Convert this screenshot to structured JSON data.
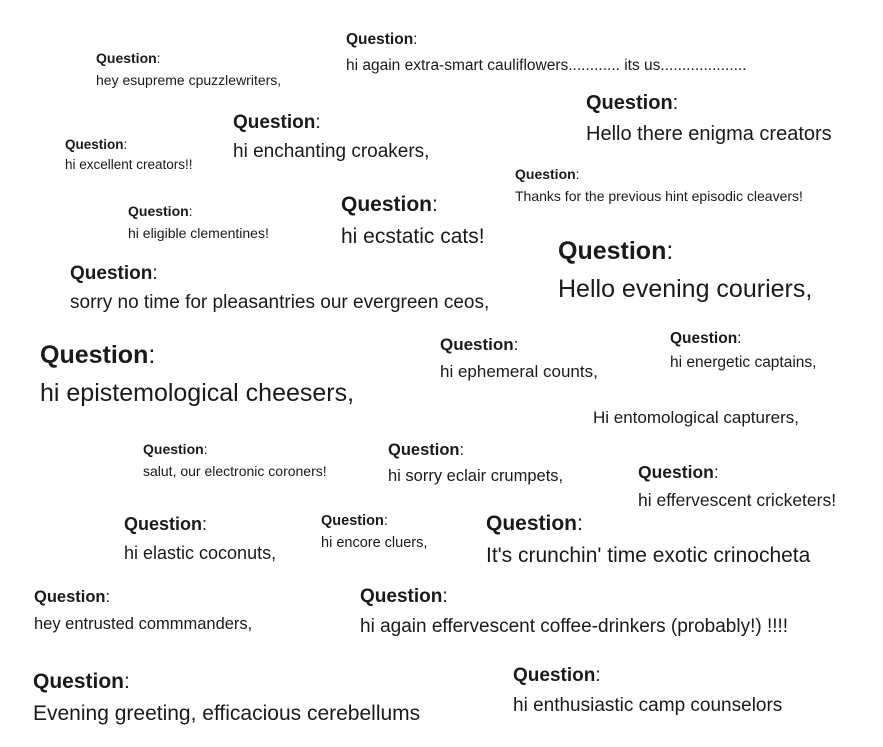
{
  "heading_word": "Question",
  "colon": ":",
  "snippets": [
    {
      "id": "s1",
      "text": "hey esupreme cpuzzlewriters,"
    },
    {
      "id": "s2",
      "text": "hi again extra-smart cauliflowers............ its us...................."
    },
    {
      "id": "s3",
      "text": "Hello there enigma creators"
    },
    {
      "id": "s4",
      "text": "hi enchanting croakers,"
    },
    {
      "id": "s5",
      "text": "hi excellent creators!!"
    },
    {
      "id": "s6",
      "text": "Thanks for the previous hint episodic cleavers!"
    },
    {
      "id": "s7",
      "text": "hi eligible clementines!"
    },
    {
      "id": "s8",
      "text": "hi ecstatic cats!"
    },
    {
      "id": "s9",
      "text": "Hello evening couriers,"
    },
    {
      "id": "s10",
      "text": "sorry no time for pleasantries our evergreen ceos,"
    },
    {
      "id": "s11",
      "text": "hi epistemological cheesers,"
    },
    {
      "id": "s12",
      "text": "hi ephemeral counts,"
    },
    {
      "id": "s13",
      "text": "hi energetic captains,"
    },
    {
      "id": "s14",
      "text": "Hi entomological capturers,"
    },
    {
      "id": "s15",
      "text": "salut, our electronic coroners!"
    },
    {
      "id": "s16",
      "text": "hi sorry eclair crumpets,"
    },
    {
      "id": "s17",
      "text": "hi effervescent cricketers!"
    },
    {
      "id": "s18",
      "text": "hi elastic coconuts,"
    },
    {
      "id": "s19",
      "text": "hi encore cluers,"
    },
    {
      "id": "s20",
      "text": "It's crunchin' time exotic crinocheta"
    },
    {
      "id": "s21",
      "text": "hey entrusted commmanders,"
    },
    {
      "id": "s22",
      "text": "hi again effervescent coffee-drinkers (probably!) !!!!"
    },
    {
      "id": "s23",
      "text": "Evening greeting, efficacious cerebellums"
    },
    {
      "id": "s24",
      "text": "hi enthusiastic camp counselors"
    }
  ]
}
